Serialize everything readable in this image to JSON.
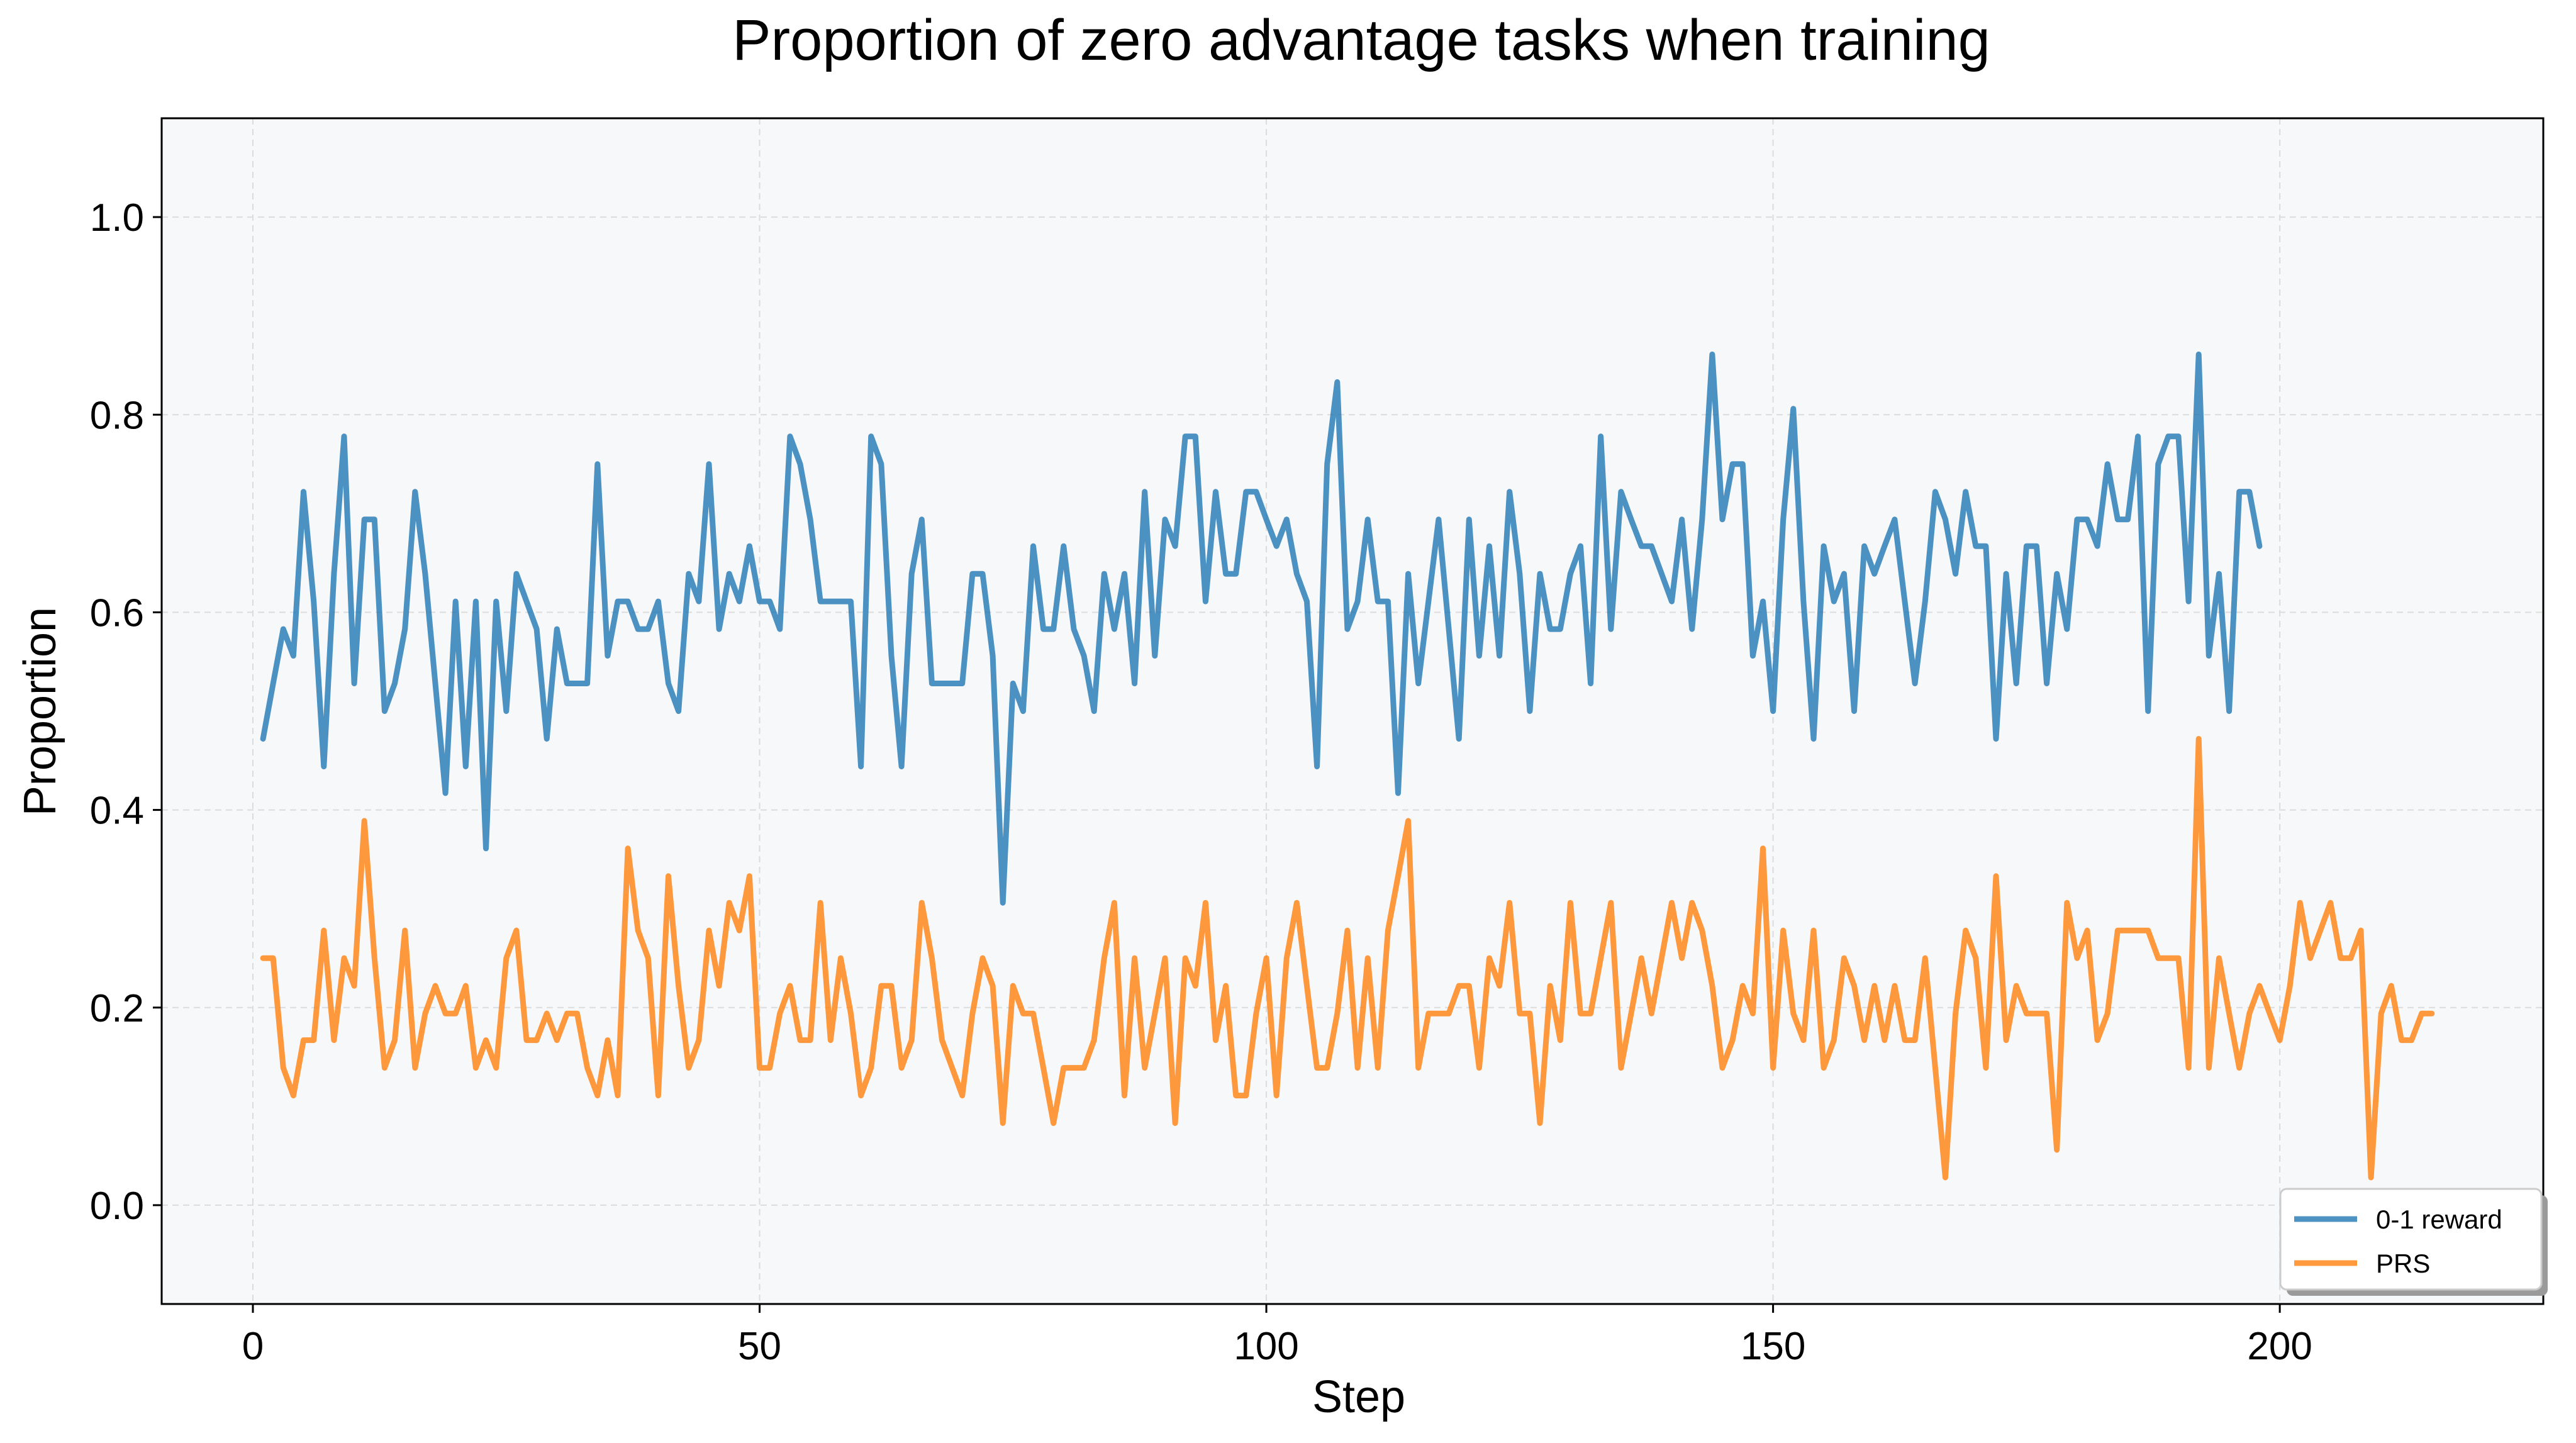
{
  "chart_data": {
    "type": "line",
    "title": "Proportion of zero advantage tasks when training",
    "xlabel": "Step",
    "ylabel": "Proportion",
    "xlim": [
      -9,
      226
    ],
    "ylim": [
      -0.1,
      1.1
    ],
    "xticks": [
      0,
      50,
      100,
      150,
      200
    ],
    "yticks": [
      0.0,
      0.2,
      0.4,
      0.6,
      0.8,
      1.0
    ],
    "ytick_labels": [
      "0.0",
      "0.2",
      "0.4",
      "0.6",
      "0.8",
      "1.0"
    ],
    "grid": true,
    "legend_position": "bottom-right",
    "series": [
      {
        "name": "0-1 reward",
        "color": "#1f77b4",
        "x_start": 1,
        "values": [
          0.472,
          0.528,
          0.583,
          0.556,
          0.722,
          0.611,
          0.444,
          0.639,
          0.778,
          0.528,
          0.694,
          0.694,
          0.5,
          0.528,
          0.583,
          0.722,
          0.639,
          0.528,
          0.417,
          0.611,
          0.444,
          0.611,
          0.361,
          0.611,
          0.5,
          0.639,
          0.611,
          0.583,
          0.472,
          0.583,
          0.528,
          0.528,
          0.528,
          0.75,
          0.556,
          0.611,
          0.611,
          0.583,
          0.583,
          0.611,
          0.528,
          0.5,
          0.639,
          0.611,
          0.75,
          0.583,
          0.639,
          0.611,
          0.667,
          0.611,
          0.611,
          0.583,
          0.778,
          0.75,
          0.694,
          0.611,
          0.611,
          0.611,
          0.611,
          0.444,
          0.778,
          0.75,
          0.556,
          0.444,
          0.639,
          0.694,
          0.528,
          0.528,
          0.528,
          0.528,
          0.639,
          0.639,
          0.556,
          0.306,
          0.528,
          0.5,
          0.667,
          0.583,
          0.583,
          0.667,
          0.583,
          0.556,
          0.5,
          0.639,
          0.583,
          0.639,
          0.528,
          0.722,
          0.556,
          0.694,
          0.667,
          0.778,
          0.778,
          0.611,
          0.722,
          0.639,
          0.639,
          0.722,
          0.722,
          0.694,
          0.667,
          0.694,
          0.639,
          0.611,
          0.444,
          0.75,
          0.833,
          0.583,
          0.611,
          0.694,
          0.611,
          0.611,
          0.417,
          0.639,
          0.528,
          0.611,
          0.694,
          0.583,
          0.472,
          0.694,
          0.556,
          0.667,
          0.556,
          0.722,
          0.639,
          0.5,
          0.639,
          0.583,
          0.583,
          0.639,
          0.667,
          0.528,
          0.778,
          0.583,
          0.722,
          0.694,
          0.667,
          0.667,
          0.639,
          0.611,
          0.694,
          0.583,
          0.694,
          0.861,
          0.694,
          0.75,
          0.75,
          0.556,
          0.611,
          0.5,
          0.694,
          0.806,
          0.611,
          0.472,
          0.667,
          0.611,
          0.639,
          0.5,
          0.667,
          0.639,
          0.667,
          0.694,
          0.611,
          0.528,
          0.611,
          0.722,
          0.694,
          0.639,
          0.722,
          0.667,
          0.667,
          0.472,
          0.639,
          0.528,
          0.667,
          0.667,
          0.528,
          0.639,
          0.583,
          0.694,
          0.694,
          0.667,
          0.75,
          0.694,
          0.694,
          0.778,
          0.5,
          0.75,
          0.778,
          0.778,
          0.611,
          0.861,
          0.556,
          0.639,
          0.5,
          0.722,
          0.722,
          0.667
        ]
      },
      {
        "name": "PRS",
        "color": "#ff7f0e",
        "x_start": 1,
        "values": [
          0.25,
          0.25,
          0.139,
          0.111,
          0.167,
          0.167,
          0.278,
          0.167,
          0.25,
          0.222,
          0.389,
          0.25,
          0.139,
          0.167,
          0.278,
          0.139,
          0.194,
          0.222,
          0.194,
          0.194,
          0.222,
          0.139,
          0.167,
          0.139,
          0.25,
          0.278,
          0.167,
          0.167,
          0.194,
          0.167,
          0.194,
          0.194,
          0.139,
          0.111,
          0.167,
          0.111,
          0.361,
          0.278,
          0.25,
          0.111,
          0.333,
          0.222,
          0.139,
          0.167,
          0.278,
          0.222,
          0.306,
          0.278,
          0.333,
          0.139,
          0.139,
          0.194,
          0.222,
          0.167,
          0.167,
          0.306,
          0.167,
          0.25,
          0.194,
          0.111,
          0.139,
          0.222,
          0.222,
          0.139,
          0.167,
          0.306,
          0.25,
          0.167,
          0.139,
          0.111,
          0.194,
          0.25,
          0.222,
          0.083,
          0.222,
          0.194,
          0.194,
          0.139,
          0.083,
          0.139,
          0.139,
          0.139,
          0.167,
          0.25,
          0.306,
          0.111,
          0.25,
          0.139,
          0.194,
          0.25,
          0.083,
          0.25,
          0.222,
          0.306,
          0.167,
          0.222,
          0.111,
          0.111,
          0.194,
          0.25,
          0.111,
          0.25,
          0.306,
          0.222,
          0.139,
          0.139,
          0.194,
          0.278,
          0.139,
          0.25,
          0.139,
          0.278,
          0.333,
          0.389,
          0.139,
          0.194,
          0.194,
          0.194,
          0.222,
          0.222,
          0.139,
          0.25,
          0.222,
          0.306,
          0.194,
          0.194,
          0.083,
          0.222,
          0.167,
          0.306,
          0.194,
          0.194,
          0.25,
          0.306,
          0.139,
          0.194,
          0.25,
          0.194,
          0.25,
          0.306,
          0.25,
          0.306,
          0.278,
          0.222,
          0.139,
          0.167,
          0.222,
          0.194,
          0.361,
          0.139,
          0.278,
          0.194,
          0.167,
          0.278,
          0.139,
          0.167,
          0.25,
          0.222,
          0.167,
          0.222,
          0.167,
          0.222,
          0.167,
          0.167,
          0.25,
          0.139,
          0.028,
          0.194,
          0.278,
          0.25,
          0.139,
          0.333,
          0.167,
          0.222,
          0.194,
          0.194,
          0.194,
          0.056,
          0.306,
          0.25,
          0.278,
          0.167,
          0.194,
          0.278,
          0.278,
          0.278,
          0.278,
          0.25,
          0.25,
          0.25,
          0.139,
          0.472,
          0.139,
          0.25,
          0.194,
          0.139,
          0.194,
          0.222,
          0.194,
          0.167,
          0.222,
          0.306,
          0.25,
          0.278,
          0.306,
          0.25,
          0.25,
          0.278,
          0.028,
          0.194,
          0.222,
          0.167,
          0.167,
          0.194,
          0.194
        ]
      }
    ]
  }
}
